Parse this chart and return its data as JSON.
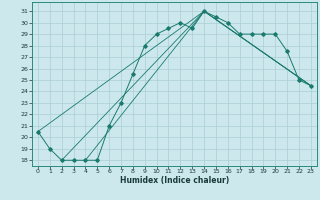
{
  "xlabel": "Humidex (Indice chaleur)",
  "bg_color": "#cce8ec",
  "grid_color": "#aacdd4",
  "line_color": "#1a7a6e",
  "xlim": [
    -0.5,
    23.5
  ],
  "ylim": [
    17.5,
    31.8
  ],
  "xticks": [
    0,
    1,
    2,
    3,
    4,
    5,
    6,
    7,
    8,
    9,
    10,
    11,
    12,
    13,
    14,
    15,
    16,
    17,
    18,
    19,
    20,
    21,
    22,
    23
  ],
  "yticks": [
    18,
    19,
    20,
    21,
    22,
    23,
    24,
    25,
    26,
    27,
    28,
    29,
    30,
    31
  ],
  "series1": {
    "x": [
      0,
      1,
      2,
      3,
      4,
      5,
      6,
      7,
      8,
      9,
      10,
      11,
      12,
      13,
      14,
      15,
      16,
      17,
      18,
      19,
      20,
      21,
      22,
      23
    ],
    "y": [
      20.5,
      19.0,
      18.0,
      18.0,
      18.0,
      18.0,
      21.0,
      23.0,
      25.5,
      28.0,
      29.0,
      29.5,
      30.0,
      29.5,
      31.0,
      30.5,
      30.0,
      29.0,
      29.0,
      29.0,
      29.0,
      27.5,
      25.0,
      24.5
    ]
  },
  "series2": {
    "x": [
      0,
      14,
      23
    ],
    "y": [
      20.5,
      31.0,
      24.5
    ]
  },
  "series3": {
    "x": [
      2,
      14,
      23
    ],
    "y": [
      18.0,
      31.0,
      24.5
    ]
  },
  "series4": {
    "x": [
      4,
      14,
      23
    ],
    "y": [
      18.0,
      31.0,
      24.5
    ]
  }
}
